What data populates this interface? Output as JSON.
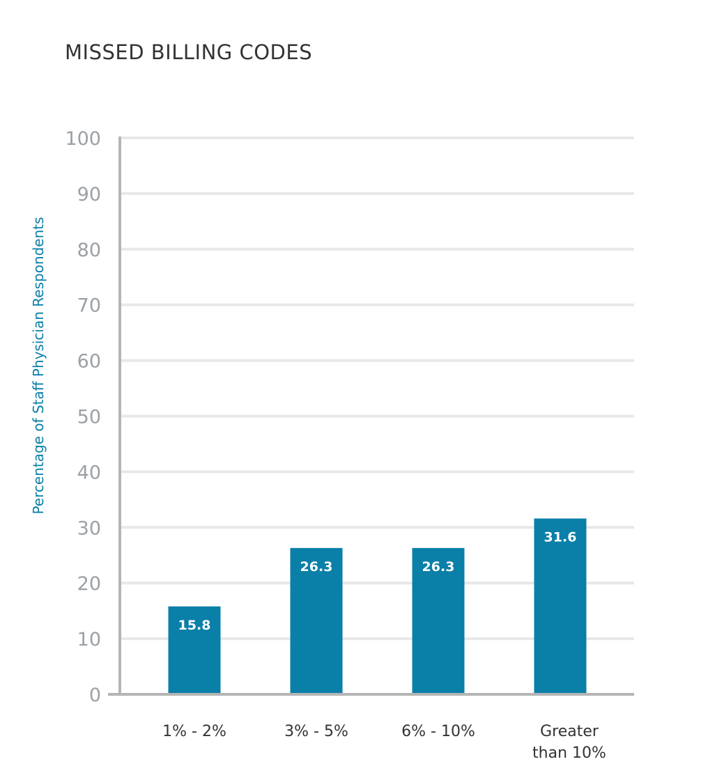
{
  "chart_data": {
    "type": "bar",
    "title": "MISSED BILLING CODES",
    "xlabel": "",
    "ylabel": "Percentage of Staff Physician Respondents",
    "categories": [
      [
        "1% - 2%"
      ],
      [
        "3% - 5%"
      ],
      [
        "6% - 10%"
      ],
      [
        "Greater",
        "than 10%"
      ]
    ],
    "values": [
      15.8,
      26.3,
      26.3,
      31.6
    ],
    "value_labels": [
      "15.8",
      "26.3",
      "26.3",
      "31.6"
    ],
    "ylim": [
      0,
      100
    ],
    "yticks": [
      0,
      10,
      20,
      30,
      40,
      50,
      60,
      70,
      80,
      90,
      100
    ],
    "ytick_labels": [
      "0",
      "10",
      "20",
      "30",
      "40",
      "50",
      "60",
      "70",
      "80",
      "90",
      "100"
    ],
    "grid": true,
    "legend": "none",
    "colors": {
      "bar": "#0a7fa8",
      "grid": "#e8e8e8",
      "axis": "#b5b5b5",
      "ylabel": "#0a7fa8"
    }
  }
}
